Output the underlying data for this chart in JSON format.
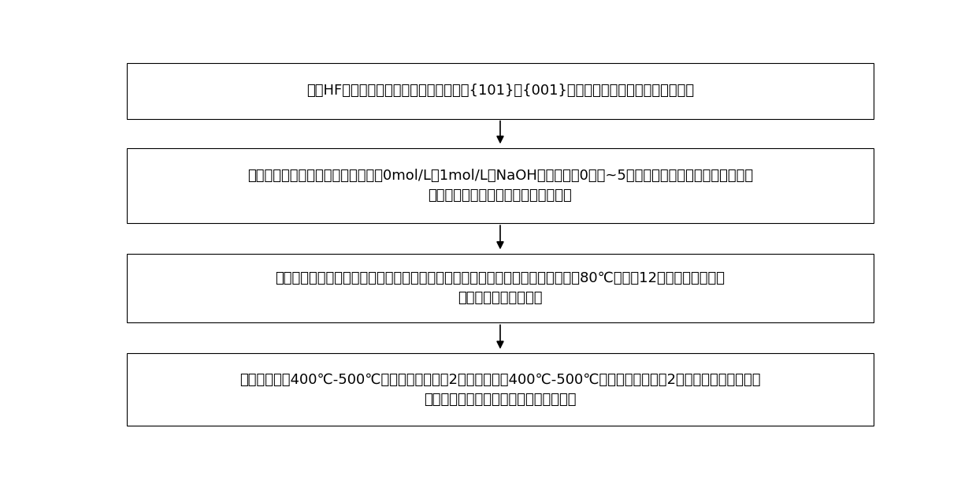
{
  "background_color": "#ffffff",
  "box_edge_color": "#000000",
  "box_fill_color": "#ffffff",
  "text_color": "#000000",
  "arrow_color": "#000000",
  "box1_text": "采用HF酸作为封端剂，通过溶剂热法制备{101}和{001}双晶面暴露二氧化钛纳米晶体粉末",
  "box2_line1": "将二氧化钛纳米晶体粉末置于浓度为0mol/L－1mol/L的NaOH溶液中搅拌0小时~5小时后，再将溶液中的固体物质离",
  "box2_line2": "心分离、水洗、干燥以得到淡蓝色粉末",
  "box3_line1": "将淡蓝色粉末、硝酸铜、氯铂酸粉末分散在去离子水内得到混合液，再将混合液在80℃下搅拌12小时，直至将混合",
  "box3_line2": "液蒸干以得到黑色粉末",
  "box4_line1": "将黑色粉末在400℃-500℃的空气环境下煅烧2小时后，再在400℃-500℃的氢气气流中煅烧2小时，以得到晶面选择",
  "box4_line2": "性沉积有铂铜合金颗粒的二氧化钛催化剂",
  "font_size": 13,
  "fig_width": 12.39,
  "fig_height": 6.14,
  "dpi": 100
}
